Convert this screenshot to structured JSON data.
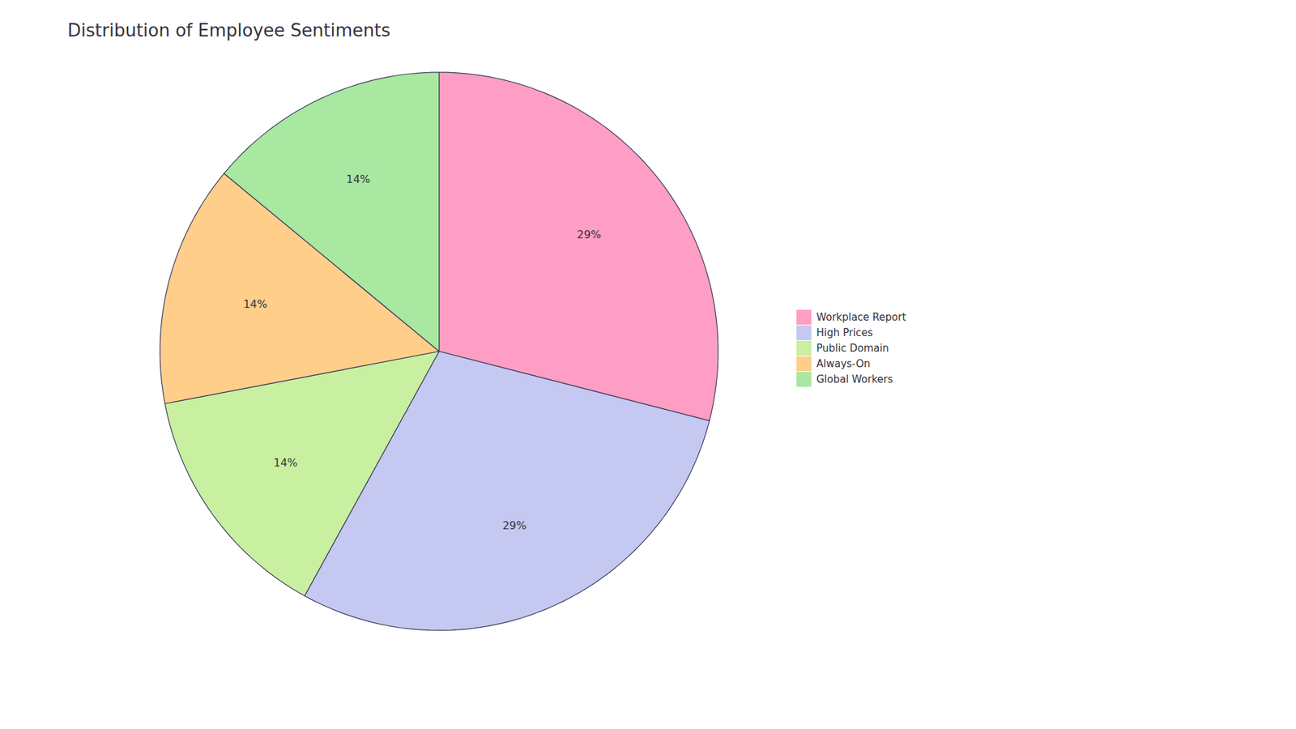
{
  "chart_data": {
    "type": "pie",
    "title": "Distribution of Employee Sentiments",
    "categories": [
      "Workplace Report",
      "High Prices",
      "Public Domain",
      "Always-On",
      "Global Workers"
    ],
    "values": [
      29,
      29,
      14,
      14,
      14
    ],
    "value_labels": [
      "29%",
      "29%",
      "14%",
      "14%",
      "14%"
    ],
    "colors": [
      "#FF9EC4",
      "#C5C8F0",
      "#C8F0A0",
      "#FFCE8A",
      "#A8E8A0"
    ],
    "data_labels": true,
    "legend": "right"
  }
}
